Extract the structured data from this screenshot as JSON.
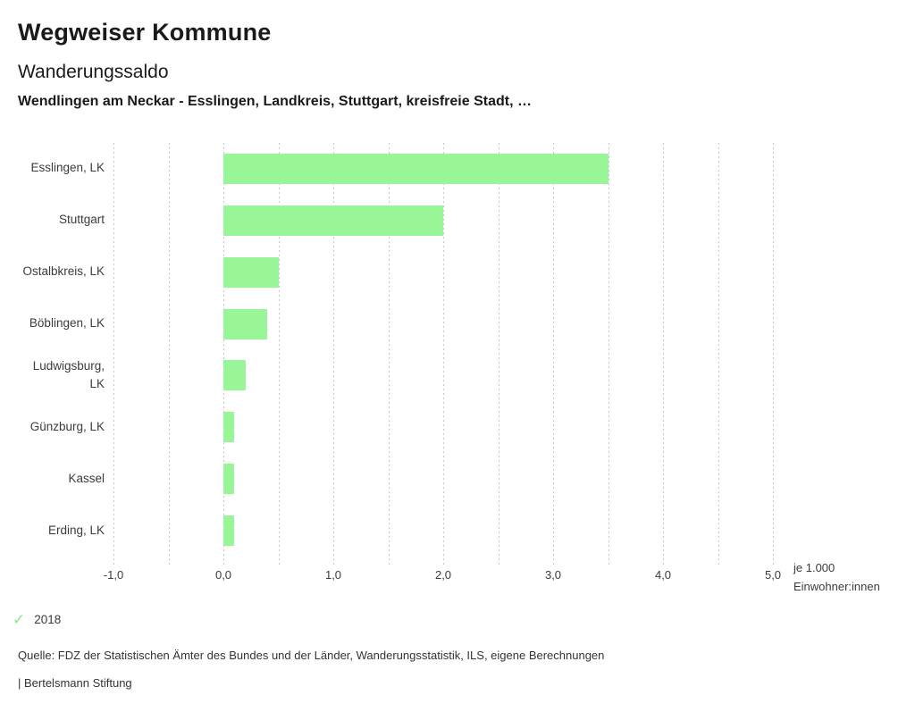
{
  "header": {
    "app_title": "Wegweiser Kommune"
  },
  "chart_data": {
    "type": "bar",
    "orientation": "horizontal",
    "title": "Wanderungssaldo",
    "subtitle": "Wendlingen am Neckar - Esslingen, Landkreis, Stuttgart, kreisfreie Stadt, …",
    "categories": [
      "Esslingen, LK",
      "Stuttgart",
      "Ostalbkreis, LK",
      "Böblingen, LK",
      "Ludwigsburg, LK",
      "Günzburg, LK",
      "Kassel",
      "Erding, LK"
    ],
    "series": [
      {
        "name": "2018",
        "values": [
          3.5,
          2.0,
          0.5,
          0.4,
          0.2,
          0.1,
          0.1,
          0.1
        ]
      }
    ],
    "xlim": [
      -1.0,
      5.0
    ],
    "x_major_ticks": [
      -1.0,
      0.0,
      1.0,
      2.0,
      3.0,
      4.0,
      5.0
    ],
    "x_tick_labels": [
      "-1,0",
      "0,0",
      "1,0",
      "2,0",
      "3,0",
      "4,0",
      "5,0"
    ],
    "x_minor_step": 0.5,
    "grid": "vertical-dashed",
    "bar_color": "#98F698",
    "grid_color": "#c6c6c6",
    "unit_label": [
      "je 1.000",
      "Einwohner:innen"
    ],
    "legend": {
      "position": "bottom-left",
      "items": [
        {
          "icon": "check-icon",
          "glyph": "✓",
          "label": "2018",
          "color": "#8ae88a"
        }
      ]
    }
  },
  "footer": {
    "source": "Quelle: FDZ der Statistischen Ämter des Bundes und der Länder, Wanderungsstatistik, ILS, eigene Berechnungen",
    "attribution": "| Bertelsmann Stiftung"
  }
}
